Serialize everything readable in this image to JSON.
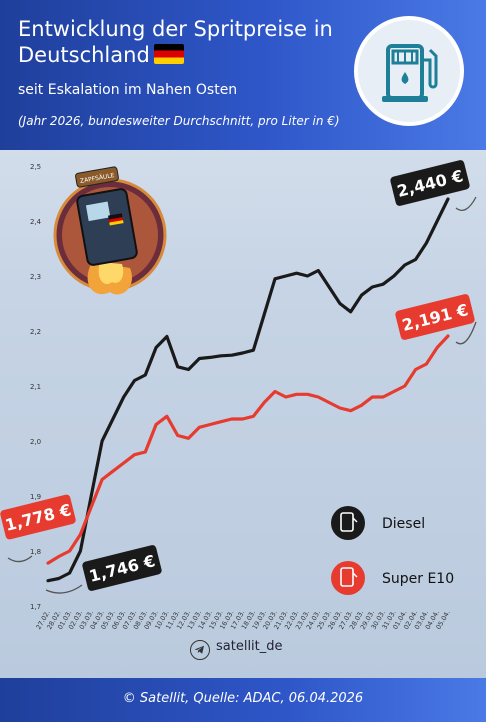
{
  "header": {
    "title": "Entwicklung der Spritpreise in Deutschland",
    "subtitle": "seit Eskalation im Nahen Osten",
    "note": "(Jahr 2026, bundesweiter Durchschnitt, pro Liter in €)"
  },
  "brand": "satellit_de",
  "footer": "© Satellit, Quelle: ADAC, 06.04.2026",
  "colors": {
    "diesel": "#1a1a1a",
    "e10": "#e63b2e",
    "header": "#2f57c9"
  },
  "callouts": {
    "diesel_start": "1,746 €",
    "diesel_end": "2,440 €",
    "e10_start": "1,778 €",
    "e10_end": "2,191 €"
  },
  "illustration_sign": "ZAPFSÄULE",
  "chart_data": {
    "type": "line",
    "x": [
      "27.02.",
      "28.02.",
      "01.03.",
      "02.03.",
      "03.03.",
      "04.03.",
      "05.03.",
      "06.03.",
      "07.03.",
      "08.03.",
      "09.03.",
      "10.03.",
      "11.03.",
      "12.03.",
      "13.03.",
      "14.03.",
      "15.03.",
      "16.03.",
      "17.03.",
      "18.03.",
      "19.03.",
      "20.03.",
      "21.03.",
      "22.03.",
      "23.03.",
      "24.03.",
      "25.03.",
      "26.03.",
      "27.03.",
      "28.03.",
      "29.03.",
      "30.03.",
      "31.03.",
      "01.04.",
      "02.04.",
      "03.04.",
      "04.04.",
      "05.04."
    ],
    "series": [
      {
        "name": "Diesel",
        "values": [
          1.746,
          1.75,
          1.76,
          1.8,
          1.9,
          2.0,
          2.04,
          2.08,
          2.11,
          2.12,
          2.17,
          2.19,
          2.135,
          2.13,
          2.15,
          2.152,
          2.155,
          2.156,
          2.16,
          2.165,
          2.23,
          2.295,
          2.3,
          2.305,
          2.3,
          2.31,
          2.28,
          2.25,
          2.235,
          2.265,
          2.28,
          2.285,
          2.3,
          2.32,
          2.33,
          2.36,
          2.4,
          2.44
        ]
      },
      {
        "name": "Super E10",
        "values": [
          1.778,
          1.79,
          1.8,
          1.83,
          1.88,
          1.93,
          1.945,
          1.96,
          1.975,
          1.98,
          2.03,
          2.045,
          2.01,
          2.005,
          2.025,
          2.03,
          2.035,
          2.04,
          2.04,
          2.045,
          2.07,
          2.09,
          2.08,
          2.085,
          2.085,
          2.08,
          2.07,
          2.06,
          2.055,
          2.065,
          2.08,
          2.08,
          2.09,
          2.1,
          2.13,
          2.14,
          2.17,
          2.191
        ]
      }
    ],
    "yticks": [
      "1,7",
      "1,8",
      "1,9",
      "2,0",
      "2,1",
      "2,2",
      "2,3",
      "2,4",
      "2,5"
    ],
    "ylim": [
      1.7,
      2.5
    ],
    "grid": false,
    "legend": "bottom-right"
  }
}
